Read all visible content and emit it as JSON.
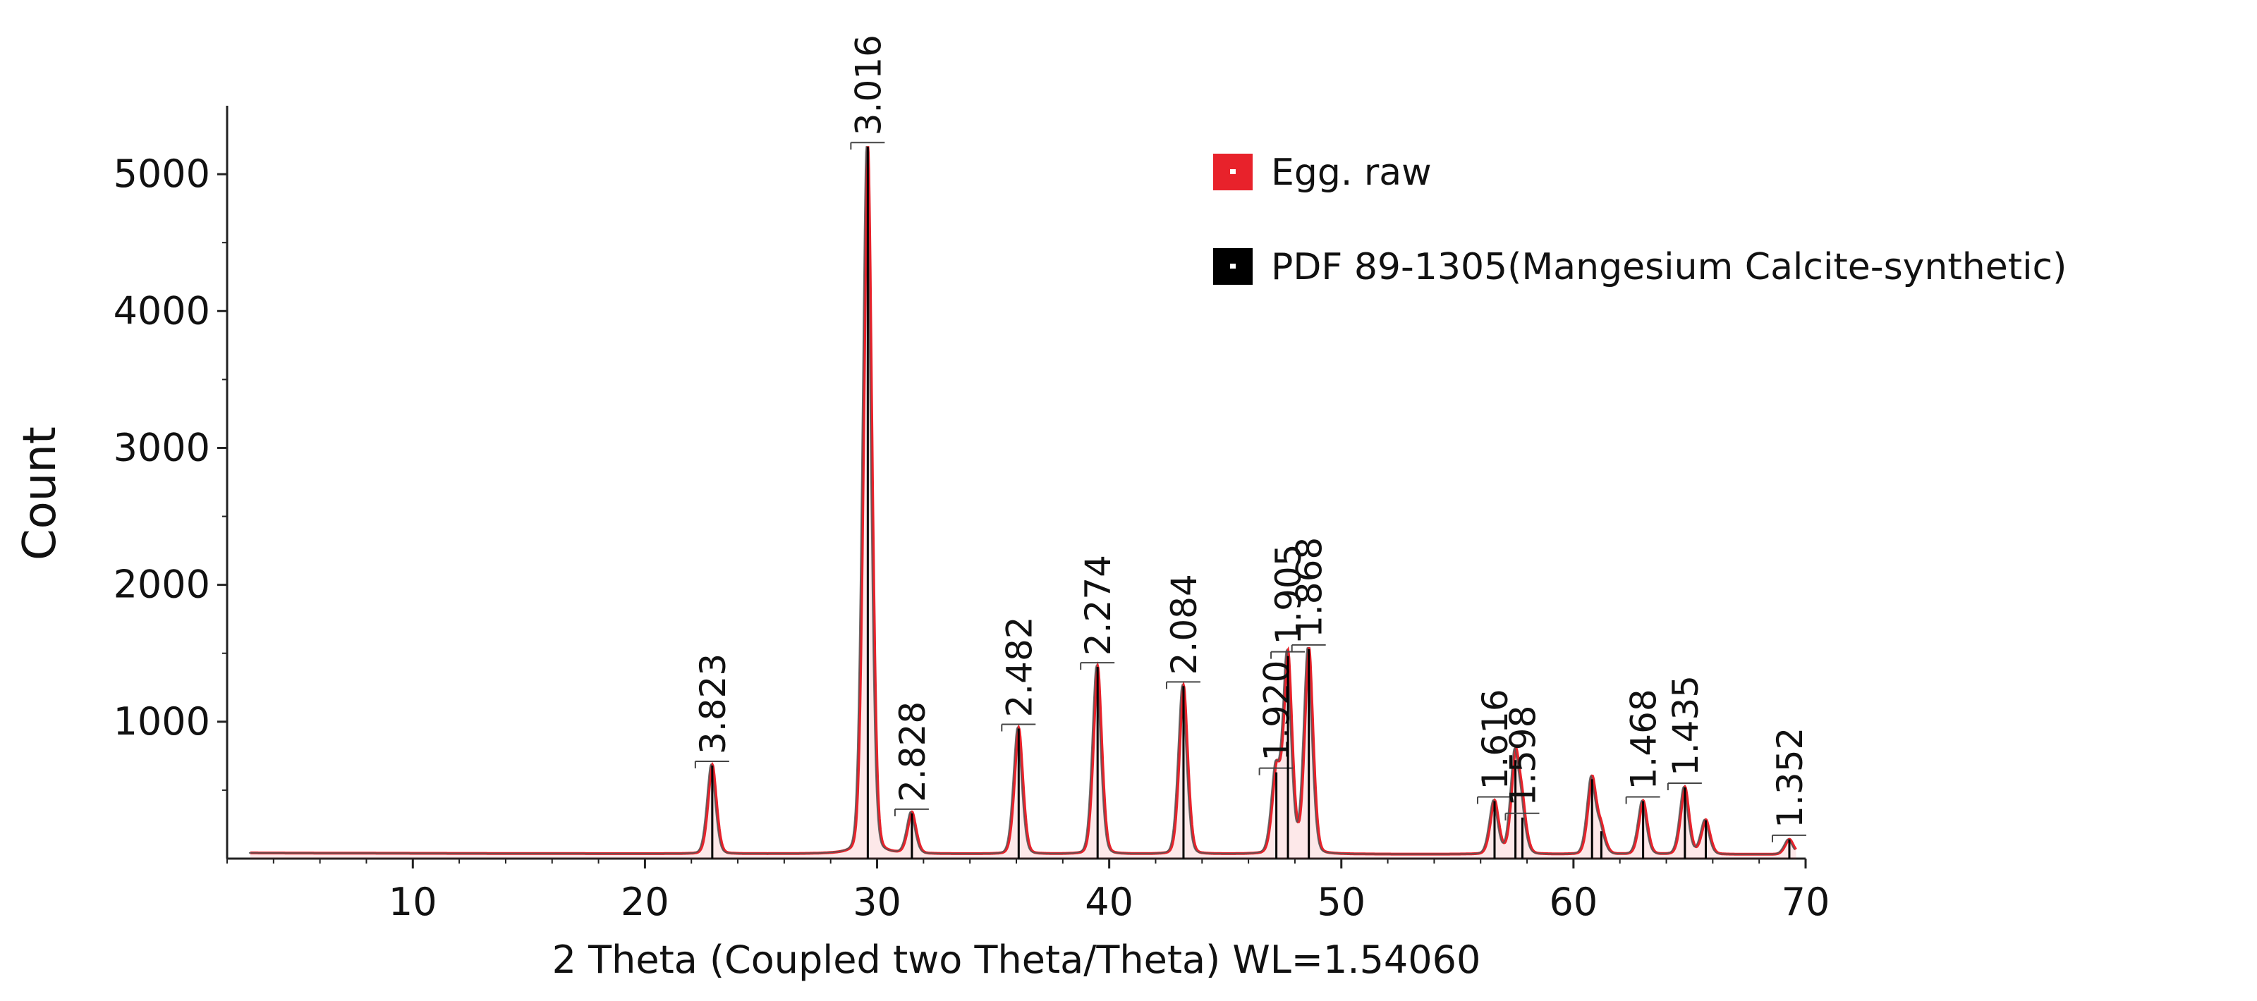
{
  "chart_data": {
    "type": "line",
    "xlabel": "2 Theta (Coupled two Theta/Theta) WL=1.54060",
    "ylabel": "Count",
    "xlim": [
      2,
      70
    ],
    "ylim": [
      0,
      5500
    ],
    "x_ticks": [
      10,
      20,
      30,
      40,
      50,
      60,
      70
    ],
    "y_ticks": [
      1000,
      2000,
      3000,
      4000,
      5000
    ],
    "grid": false,
    "legend_position": "top-right",
    "series": [
      {
        "name": "Egg. raw",
        "color": "#e8222b"
      },
      {
        "name": "PDF 89-1305(Mangesium Calcite-synthetic)",
        "color": "#000000"
      }
    ],
    "baseline": 30,
    "peaks": [
      {
        "x": 22.9,
        "y": 680,
        "label": "3.823"
      },
      {
        "x": 29.6,
        "y": 5200,
        "label": "3.016"
      },
      {
        "x": 31.5,
        "y": 330,
        "label": "2.828"
      },
      {
        "x": 36.1,
        "y": 950,
        "label": "2.482"
      },
      {
        "x": 39.5,
        "y": 1400,
        "label": "2.274"
      },
      {
        "x": 43.2,
        "y": 1260,
        "label": "2.084"
      },
      {
        "x": 47.2,
        "y": 630,
        "label": "1.920"
      },
      {
        "x": 47.7,
        "y": 1480,
        "label": "1.905"
      },
      {
        "x": 48.6,
        "y": 1530,
        "label": "1.868"
      },
      {
        "x": 56.6,
        "y": 420,
        "label": "1.616"
      },
      {
        "x": 57.5,
        "y": 720,
        "label": ""
      },
      {
        "x": 57.8,
        "y": 300,
        "label": "1.598"
      },
      {
        "x": 60.8,
        "y": 580,
        "label": ""
      },
      {
        "x": 61.2,
        "y": 200,
        "label": ""
      },
      {
        "x": 63.0,
        "y": 420,
        "label": "1.468"
      },
      {
        "x": 64.8,
        "y": 520,
        "label": "1.435"
      },
      {
        "x": 65.7,
        "y": 280,
        "label": ""
      },
      {
        "x": 69.3,
        "y": 140,
        "label": "1.352"
      }
    ]
  }
}
